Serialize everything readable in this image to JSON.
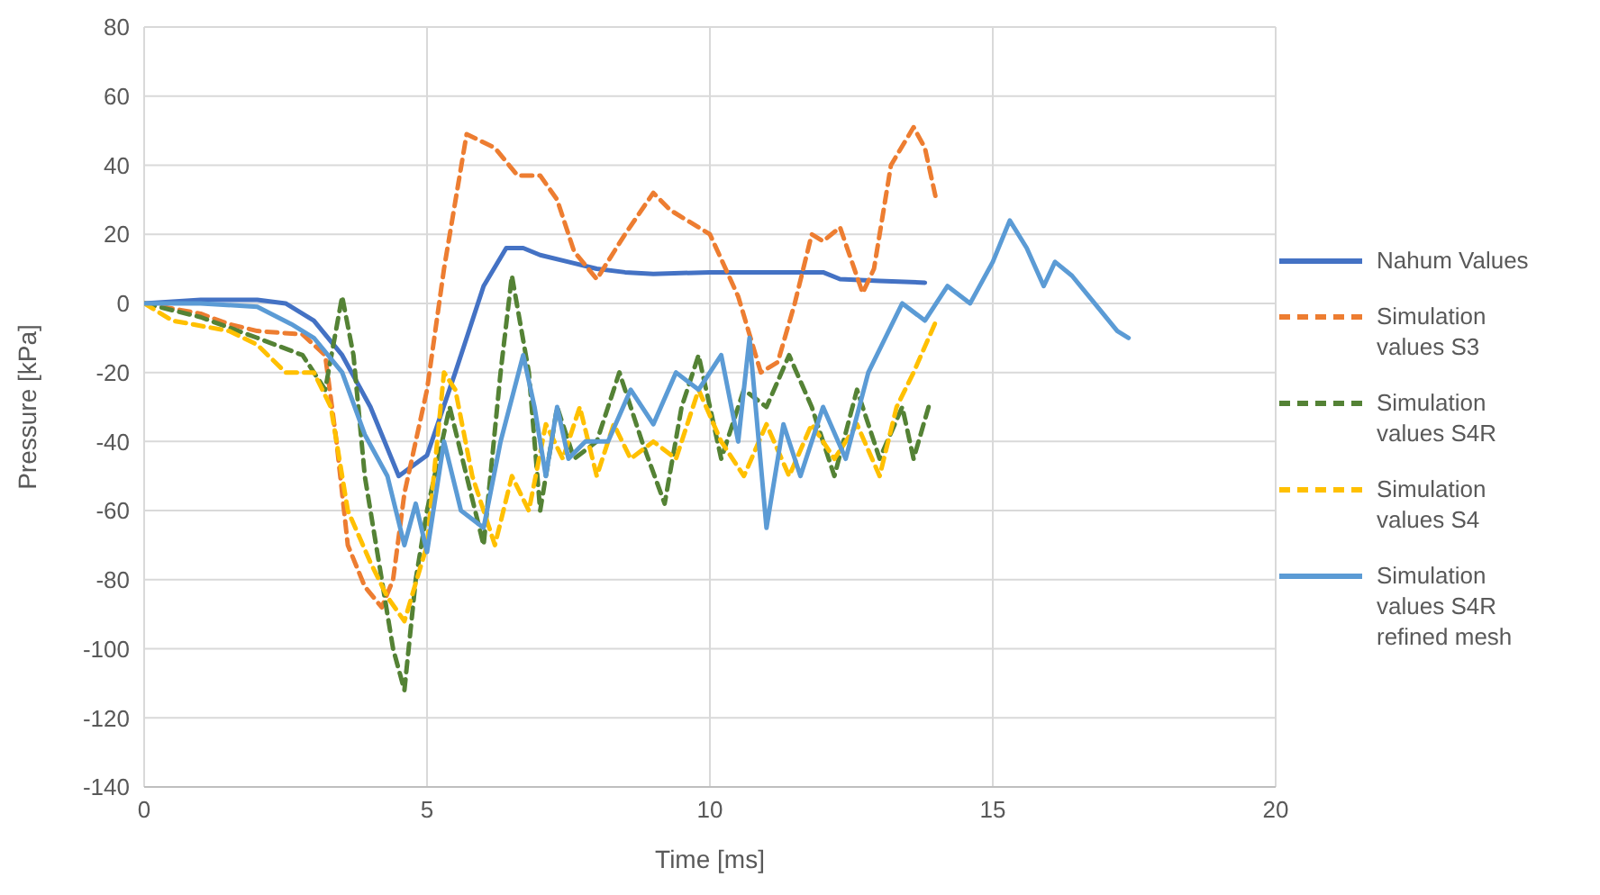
{
  "chart_data": {
    "type": "line",
    "xlabel": "Time [ms]",
    "ylabel": "Pressure [kPa]",
    "xlim": [
      0,
      20
    ],
    "xticks": [
      0,
      5,
      10,
      15,
      20
    ],
    "ylim": [
      -140,
      80
    ],
    "yticks": [
      -140,
      -120,
      -100,
      -80,
      -60,
      -40,
      -20,
      0,
      20,
      40,
      60,
      80
    ],
    "grid": true,
    "legend": "right",
    "marker": "none",
    "series": [
      {
        "name": "Nahum Values",
        "color": "#4472c4",
        "line_style": "solid",
        "x": [
          0,
          1,
          2,
          2.5,
          3,
          3.5,
          4,
          4.5,
          5,
          5.5,
          6,
          6.4,
          6.7,
          7,
          7.5,
          8,
          8.5,
          9,
          10,
          11,
          12,
          12.3,
          13,
          13.8
        ],
        "values": [
          0,
          1,
          1,
          0,
          -5,
          -15,
          -30,
          -50,
          -44,
          -20,
          5,
          16,
          16,
          14,
          12,
          10,
          9,
          8.5,
          9,
          9,
          9,
          7,
          6.5,
          6
        ]
      },
      {
        "name": "Simulation values S3",
        "color": "#ed7d31",
        "line_style": "dashed",
        "x": [
          0,
          1,
          1.5,
          2,
          2.8,
          3.2,
          3.4,
          3.6,
          3.9,
          4.2,
          4.4,
          4.6,
          5,
          5.3,
          5.7,
          6.2,
          6.6,
          7,
          7.3,
          7.6,
          8,
          8.5,
          9,
          9.3,
          9.8,
          10,
          10.5,
          10.9,
          11.2,
          11.5,
          11.8,
          12,
          12.3,
          12.7,
          12.9,
          13.2,
          13.6,
          13.8,
          14
        ],
        "values": [
          0,
          -3,
          -6,
          -8,
          -9,
          -15,
          -40,
          -70,
          -82,
          -88,
          -80,
          -55,
          -25,
          10,
          49,
          45,
          37,
          37,
          30,
          15,
          7,
          20,
          32,
          27,
          22,
          20,
          2,
          -20,
          -17,
          0,
          20,
          18,
          22,
          3,
          10,
          40,
          51,
          45,
          30
        ]
      },
      {
        "name": "Simulation values S4R",
        "color": "#548235",
        "line_style": "dashed",
        "x": [
          0,
          1,
          2,
          2.8,
          3.2,
          3.5,
          3.7,
          3.9,
          4.2,
          4.4,
          4.6,
          4.8,
          5,
          5.4,
          5.7,
          6,
          6.3,
          6.5,
          6.8,
          7,
          7.3,
          7.6,
          8,
          8.4,
          8.8,
          9.2,
          9.5,
          9.8,
          10.2,
          10.6,
          11,
          11.4,
          11.8,
          12.2,
          12.6,
          13,
          13.4,
          13.6,
          13.9
        ],
        "values": [
          0,
          -4,
          -10,
          -15,
          -25,
          2,
          -15,
          -50,
          -80,
          -100,
          -112,
          -80,
          -60,
          -30,
          -50,
          -70,
          -20,
          8,
          -20,
          -60,
          -30,
          -45,
          -40,
          -20,
          -40,
          -58,
          -30,
          -15,
          -45,
          -25,
          -30,
          -15,
          -30,
          -50,
          -25,
          -45,
          -30,
          -45,
          -28
        ]
      },
      {
        "name": "Simulation values S4",
        "color": "#ffc000",
        "line_style": "dashed",
        "x": [
          0,
          0.5,
          1.5,
          2,
          2.5,
          3,
          3.3,
          3.6,
          4,
          4.3,
          4.6,
          5,
          5.3,
          5.5,
          5.8,
          6.2,
          6.5,
          6.8,
          7.1,
          7.4,
          7.7,
          8,
          8.3,
          8.6,
          9,
          9.4,
          9.8,
          10.2,
          10.6,
          11,
          11.4,
          11.8,
          12.2,
          12.6,
          13,
          13.3,
          13.6,
          14
        ],
        "values": [
          0,
          -5,
          -8,
          -12,
          -20,
          -20,
          -30,
          -60,
          -75,
          -85,
          -92,
          -70,
          -20,
          -25,
          -50,
          -70,
          -50,
          -60,
          -35,
          -45,
          -30,
          -50,
          -35,
          -45,
          -40,
          -45,
          -25,
          -40,
          -50,
          -35,
          -50,
          -35,
          -45,
          -35,
          -50,
          -30,
          -20,
          -5
        ]
      },
      {
        "name": "Simulation values S4R refined mesh",
        "color": "#5b9bd5",
        "line_style": "solid",
        "x": [
          0,
          1,
          2,
          2.6,
          3,
          3.5,
          3.9,
          4.3,
          4.6,
          4.8,
          5,
          5.3,
          5.6,
          6,
          6.3,
          6.7,
          6.9,
          7.1,
          7.3,
          7.5,
          7.8,
          8.2,
          8.6,
          9,
          9.4,
          9.8,
          10.2,
          10.5,
          10.7,
          11,
          11.3,
          11.6,
          12,
          12.4,
          12.8,
          13.1,
          13.4,
          13.8,
          14.2,
          14.6,
          15,
          15.3,
          15.6,
          15.9,
          16.1,
          16.4,
          16.8,
          17.2,
          17.4
        ],
        "values": [
          0,
          0,
          -1,
          -6,
          -10,
          -20,
          -38,
          -50,
          -70,
          -58,
          -72,
          -40,
          -60,
          -65,
          -40,
          -15,
          -30,
          -50,
          -30,
          -45,
          -40,
          -40,
          -25,
          -35,
          -20,
          -25,
          -15,
          -40,
          -10,
          -65,
          -35,
          -50,
          -30,
          -45,
          -20,
          -10,
          0,
          -5,
          5,
          0,
          12,
          24,
          16,
          5,
          12,
          8,
          0,
          -8,
          -10
        ]
      }
    ]
  }
}
